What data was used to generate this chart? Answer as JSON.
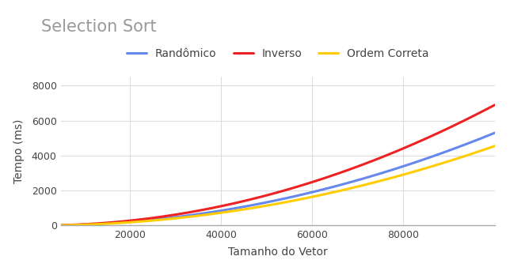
{
  "title": "Selection Sort",
  "xlabel": "Tamanho do Vetor",
  "ylabel": "Tempo (ms)",
  "xlim": [
    5000,
    100000
  ],
  "ylim": [
    0,
    8500
  ],
  "x_ticks": [
    20000,
    40000,
    60000,
    80000
  ],
  "y_ticks": [
    0,
    2000,
    4000,
    6000,
    8000
  ],
  "series": [
    {
      "label": "Randômico",
      "color": "#6688ee",
      "quad_a": 5.3e-07,
      "quad_b": 0.0,
      "quad_c": 0.0
    },
    {
      "label": "Inverso",
      "color": "#ee2222",
      "quad_a": 6.9e-07,
      "quad_b": 0.0,
      "quad_c": 0.0
    },
    {
      "label": "Ordem Correta",
      "color": "#ffcc00",
      "quad_a": 4.55e-07,
      "quad_b": 0.0,
      "quad_c": 0.0
    }
  ],
  "title_color": "#999999",
  "title_fontsize": 15,
  "axis_label_fontsize": 10,
  "tick_fontsize": 9,
  "legend_fontsize": 10,
  "grid_color": "#dddddd",
  "background_color": "#ffffff",
  "line_width": 2.2
}
